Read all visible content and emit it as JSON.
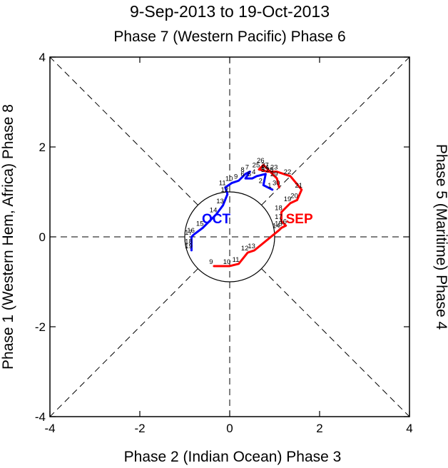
{
  "chart_data": {
    "type": "line",
    "title": "9-Sep-2013 to 19-Oct-2013",
    "top_label": "Phase 7 (Western Pacific) Phase 6",
    "bottom_label": "Phase 2 (Indian Ocean) Phase 3",
    "left_label": "Phase 1 (Western Hem, Africa) Phase 8",
    "right_label": "Phase 5 (Maritime) Phase 4",
    "xlim": [
      -4,
      4
    ],
    "ylim": [
      -4,
      4
    ],
    "xticks": [
      "-4",
      "-2",
      "0",
      "2",
      "4"
    ],
    "yticks": [
      "-4",
      "-2",
      "0",
      "2",
      "4"
    ],
    "tick_values": [
      -4,
      -2,
      0,
      2,
      4
    ],
    "unit_circle_radius": 1,
    "series": [
      {
        "name": "SEP",
        "color": "#ff0000",
        "label_pos": [
          1.55,
          0.3
        ],
        "points": [
          {
            "day": "9",
            "x": -0.35,
            "y": -0.65
          },
          {
            "day": "10",
            "x": 0.0,
            "y": -0.65
          },
          {
            "day": "11",
            "x": 0.2,
            "y": -0.6
          },
          {
            "day": "12",
            "x": 0.4,
            "y": -0.35
          },
          {
            "day": "13",
            "x": 0.55,
            "y": -0.3
          },
          {
            "day": "14",
            "x": 1.1,
            "y": 0.15
          },
          {
            "day": "15",
            "x": 1.15,
            "y": 0.2
          },
          {
            "day": "16",
            "x": 1.25,
            "y": 0.25
          },
          {
            "day": "17",
            "x": 1.15,
            "y": 0.35
          },
          {
            "day": "18",
            "x": 1.15,
            "y": 0.55
          },
          {
            "day": "19",
            "x": 1.35,
            "y": 0.75
          },
          {
            "day": "20",
            "x": 1.5,
            "y": 0.82
          },
          {
            "day": "21",
            "x": 1.6,
            "y": 1.05
          },
          {
            "day": "22",
            "x": 1.35,
            "y": 1.35
          },
          {
            "day": "23",
            "x": 1.05,
            "y": 1.45
          },
          {
            "day": "24",
            "x": 0.85,
            "y": 1.45
          },
          {
            "day": "25",
            "x": 0.65,
            "y": 1.5
          },
          {
            "day": "26",
            "x": 0.75,
            "y": 1.6
          },
          {
            "day": "27",
            "x": 0.85,
            "y": 1.5
          },
          {
            "day": "28",
            "x": 0.95,
            "y": 1.4
          },
          {
            "day": "29",
            "x": 1.05,
            "y": 1.3
          },
          {
            "day": "30",
            "x": 1.1,
            "y": 1.1
          }
        ]
      },
      {
        "name": "OCT",
        "color": "#0000ff",
        "label_pos": [
          -0.3,
          0.3
        ],
        "points": [
          {
            "day": "1",
            "x": 0.95,
            "y": 1.05
          },
          {
            "day": "2",
            "x": 0.75,
            "y": 1.15
          },
          {
            "day": "3",
            "x": 0.8,
            "y": 1.4
          },
          {
            "day": "4",
            "x": 0.6,
            "y": 1.35
          },
          {
            "day": "5",
            "x": 0.5,
            "y": 1.3
          },
          {
            "day": "6",
            "x": 0.35,
            "y": 1.3
          },
          {
            "day": "7",
            "x": 0.45,
            "y": 1.45
          },
          {
            "day": "8",
            "x": 0.35,
            "y": 1.4
          },
          {
            "day": "9",
            "x": 0.2,
            "y": 1.25
          },
          {
            "day": "10",
            "x": 0.05,
            "y": 1.2
          },
          {
            "day": "11",
            "x": -0.1,
            "y": 1.1
          },
          {
            "day": "12",
            "x": -0.05,
            "y": 0.95
          },
          {
            "day": "13",
            "x": -0.15,
            "y": 0.7
          },
          {
            "day": "14",
            "x": -0.3,
            "y": 0.5
          },
          {
            "day": "15",
            "x": -0.6,
            "y": 0.2
          },
          {
            "day": "16",
            "x": -0.8,
            "y": 0.05
          },
          {
            "day": "17",
            "x": -0.85,
            "y": 0.0
          },
          {
            "day": "18",
            "x": -0.85,
            "y": -0.2
          },
          {
            "day": "19",
            "x": -0.85,
            "y": -0.3
          }
        ]
      }
    ]
  }
}
